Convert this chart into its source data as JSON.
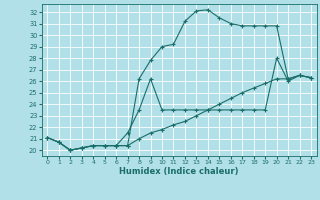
{
  "xlabel": "Humidex (Indice chaleur)",
  "bg_color": "#b2e0e8",
  "grid_color": "#ffffff",
  "line_color": "#1a6e6a",
  "xlim": [
    -0.5,
    23.5
  ],
  "ylim": [
    19.5,
    32.7
  ],
  "xticks": [
    0,
    1,
    2,
    3,
    4,
    5,
    6,
    7,
    8,
    9,
    10,
    11,
    12,
    13,
    14,
    15,
    16,
    17,
    18,
    19,
    20,
    21,
    22,
    23
  ],
  "yticks": [
    20,
    21,
    22,
    23,
    24,
    25,
    26,
    27,
    28,
    29,
    30,
    31,
    32
  ],
  "line1_x": [
    0,
    1,
    2,
    3,
    4,
    5,
    6,
    7,
    8,
    9,
    10,
    11,
    12,
    13,
    14,
    15,
    16,
    17,
    18,
    19,
    20,
    21,
    22,
    23
  ],
  "line1_y": [
    21.1,
    20.7,
    20.0,
    20.2,
    20.4,
    20.4,
    20.4,
    20.4,
    26.2,
    27.8,
    29.0,
    29.2,
    31.2,
    32.1,
    32.2,
    31.5,
    31.0,
    30.8,
    30.8,
    30.8,
    30.8,
    26.2,
    26.5,
    26.3
  ],
  "line2_x": [
    0,
    1,
    2,
    3,
    4,
    5,
    6,
    7,
    8,
    9,
    10,
    11,
    12,
    13,
    14,
    15,
    16,
    17,
    18,
    19,
    20,
    21,
    22,
    23
  ],
  "line2_y": [
    21.1,
    20.7,
    20.0,
    20.2,
    20.4,
    20.4,
    20.4,
    21.5,
    23.5,
    26.2,
    23.5,
    23.5,
    23.5,
    23.5,
    23.5,
    23.5,
    23.5,
    23.5,
    23.5,
    23.5,
    28.0,
    26.0,
    26.5,
    26.3
  ],
  "line3_x": [
    0,
    1,
    2,
    3,
    4,
    5,
    6,
    7,
    8,
    9,
    10,
    11,
    12,
    13,
    14,
    15,
    16,
    17,
    18,
    19,
    20,
    21,
    22,
    23
  ],
  "line3_y": [
    21.1,
    20.7,
    20.0,
    20.2,
    20.4,
    20.4,
    20.4,
    20.4,
    21.0,
    21.5,
    21.8,
    22.2,
    22.5,
    23.0,
    23.5,
    24.0,
    24.5,
    25.0,
    25.4,
    25.8,
    26.2,
    26.2,
    26.5,
    26.3
  ]
}
